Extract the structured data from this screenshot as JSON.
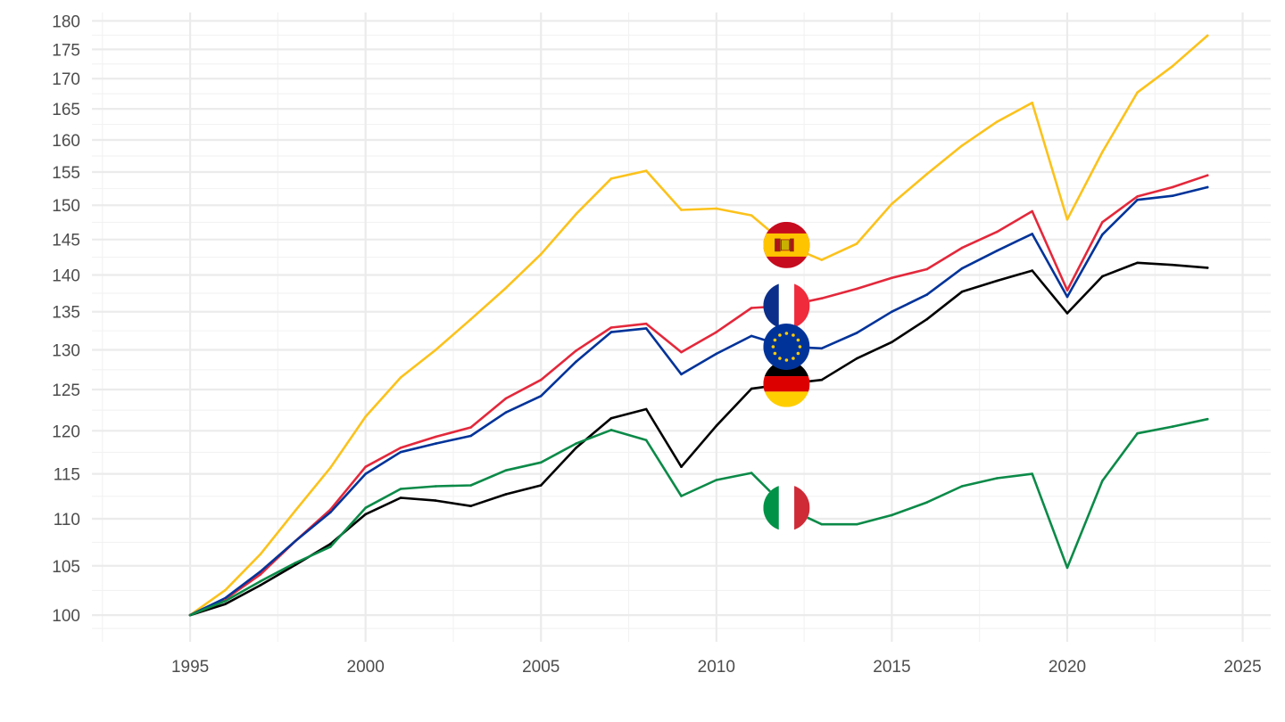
{
  "chart_data": {
    "type": "line",
    "y_scale": "log",
    "grid": true,
    "legend": "flag icons placed on the lines at 2012",
    "xlim": [
      1992.2,
      2025.8
    ],
    "ylim": [
      97.4,
      181.5
    ],
    "x_ticks": [
      1995,
      2000,
      2005,
      2010,
      2015,
      2020,
      2025
    ],
    "y_ticks": [
      100,
      105,
      110,
      115,
      120,
      125,
      130,
      135,
      140,
      145,
      150,
      155,
      160,
      165,
      170,
      175,
      180
    ],
    "x": [
      1995,
      1996,
      1997,
      1998,
      1999,
      2000,
      2001,
      2002,
      2003,
      2004,
      2005,
      2006,
      2007,
      2008,
      2009,
      2010,
      2011,
      2012,
      2013,
      2014,
      2015,
      2016,
      2017,
      2018,
      2019,
      2020,
      2021,
      2022,
      2023,
      2024
    ],
    "flag_year": 2012,
    "series": [
      {
        "flag": "spain-flag",
        "color": "#fcc21b",
        "values": [
          100,
          102.5,
          106.2,
          110.9,
          115.7,
          121.7,
          126.5,
          130.0,
          134.0,
          138.2,
          142.9,
          148.7,
          154.0,
          155.2,
          149.3,
          149.5,
          148.5,
          144.2,
          142.1,
          144.4,
          150.2,
          154.7,
          159.1,
          162.9,
          166.0,
          147.9,
          158.1,
          167.7,
          172.1,
          177.4
        ]
      },
      {
        "flag": "france-flag",
        "color": "#e3283b",
        "values": [
          100,
          101.6,
          104.1,
          107.6,
          111.0,
          115.8,
          118.0,
          119.3,
          120.4,
          123.9,
          126.2,
          129.9,
          132.9,
          133.4,
          129.7,
          132.3,
          135.5,
          135.8,
          136.8,
          138.1,
          139.6,
          140.8,
          143.8,
          146.1,
          149.1,
          137.9,
          147.5,
          151.3,
          152.7,
          154.5
        ]
      },
      {
        "flag": "eu-flag",
        "color": "#003399",
        "values": [
          100,
          101.7,
          104.4,
          107.6,
          110.7,
          115.0,
          117.5,
          118.5,
          119.4,
          122.2,
          124.2,
          128.5,
          132.3,
          132.8,
          126.9,
          129.5,
          131.8,
          130.4,
          130.2,
          132.2,
          135.0,
          137.3,
          140.9,
          143.4,
          145.8,
          137.0,
          145.7,
          150.8,
          151.4,
          152.7
        ]
      },
      {
        "flag": "germany-flag",
        "color": "#000000",
        "values": [
          100,
          101.1,
          103.0,
          105.1,
          107.3,
          110.5,
          112.3,
          112.0,
          111.4,
          112.7,
          113.7,
          118.0,
          121.5,
          122.6,
          115.8,
          120.6,
          125.1,
          125.7,
          126.2,
          128.9,
          131.0,
          134.0,
          137.7,
          139.2,
          140.6,
          134.8,
          139.8,
          141.7,
          141.4,
          141.0
        ]
      },
      {
        "flag": "italy-flag",
        "color": "#0b8a48",
        "values": [
          100,
          101.4,
          103.4,
          105.3,
          107.0,
          111.2,
          113.3,
          113.6,
          113.7,
          115.4,
          116.3,
          118.5,
          120.1,
          118.9,
          112.5,
          114.3,
          115.1,
          111.2,
          109.4,
          109.4,
          110.4,
          111.8,
          113.6,
          114.5,
          115.0,
          104.8,
          114.2,
          119.7,
          120.5,
          121.4
        ]
      }
    ]
  }
}
